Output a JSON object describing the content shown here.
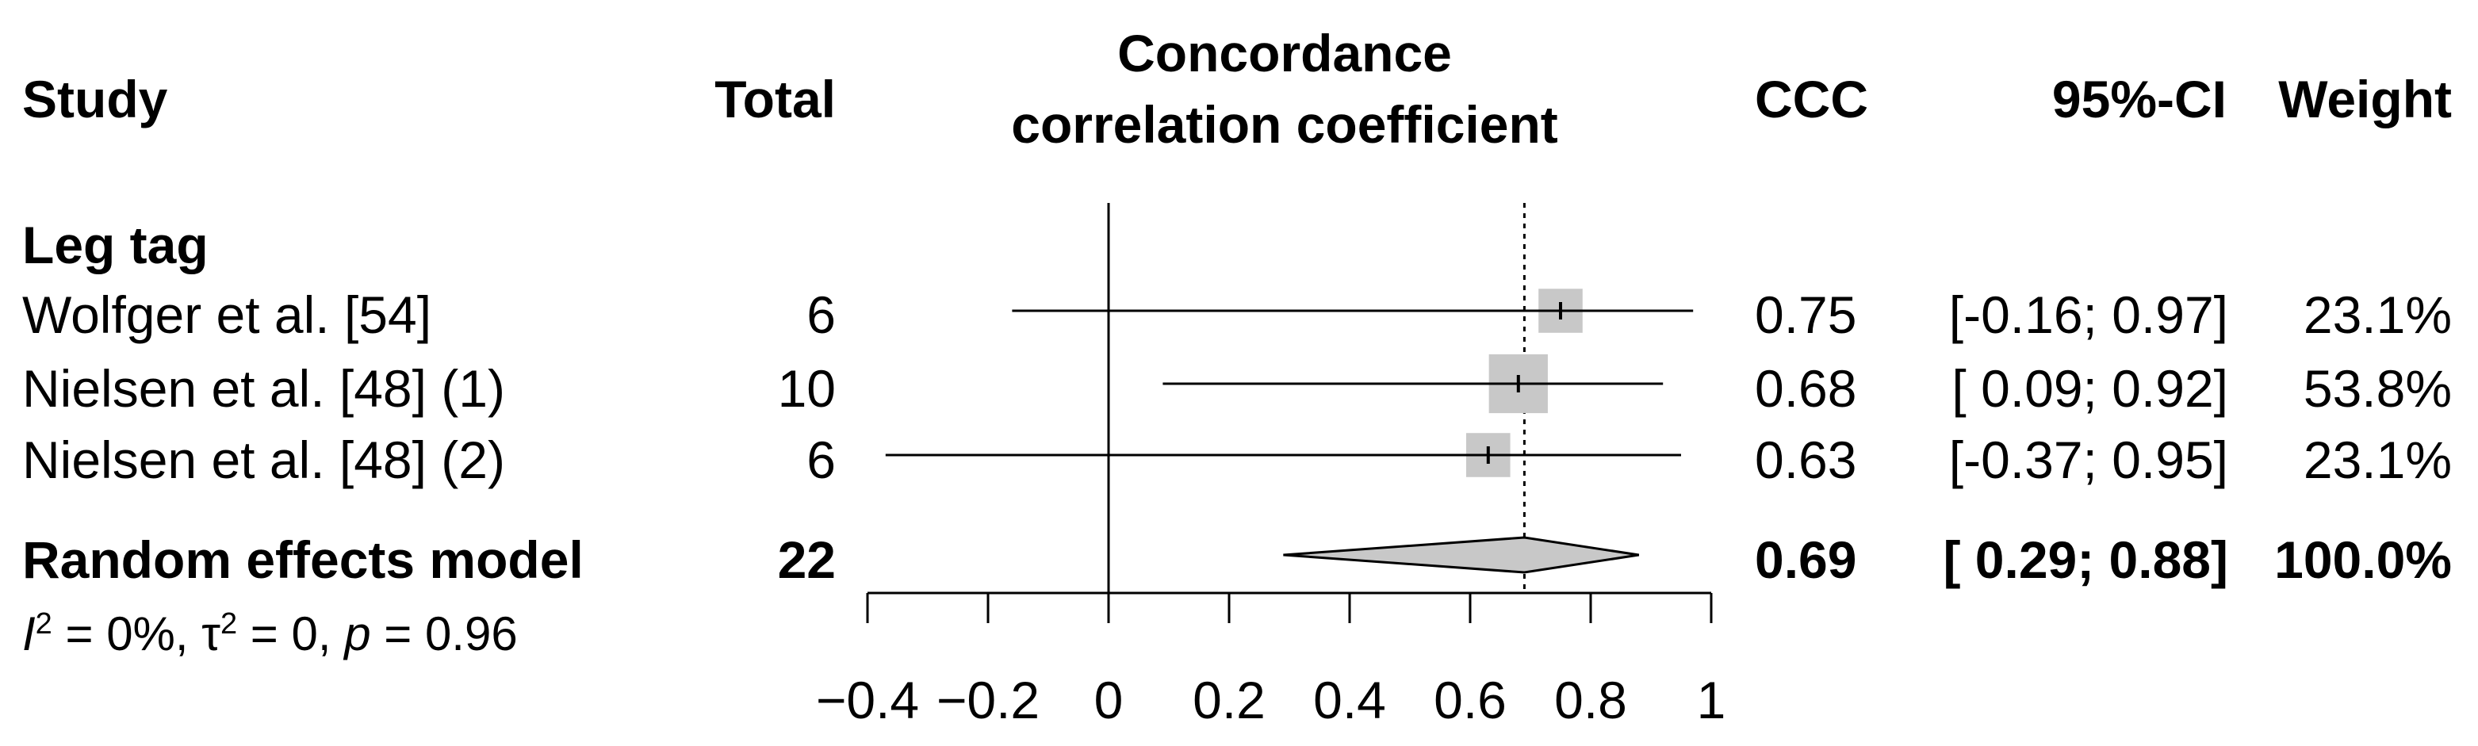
{
  "headers": {
    "study": "Study",
    "total": "Total",
    "plot_title_line1": "Concordance",
    "plot_title_line2": "correlation coefficient",
    "ccc": "CCC",
    "ci": "95%-CI",
    "weight": "Weight"
  },
  "subgroup": "Leg tag",
  "studies": [
    {
      "name": "Wolfger et al. [54]",
      "total": "6",
      "ccc": "0.75",
      "ci": "[-0.16; 0.97]",
      "weight": "23.1%"
    },
    {
      "name": "Nielsen et al. [48] (1)",
      "total": "10",
      "ccc": "0.68",
      "ci": "[ 0.09; 0.92]",
      "weight": "53.8%"
    },
    {
      "name": "Nielsen et al. [48] (2)",
      "total": "6",
      "ccc": "0.63",
      "ci": "[-0.37; 0.95]",
      "weight": "23.1%"
    }
  ],
  "pooled": {
    "name": "Random effects model",
    "total": "22",
    "ccc": "0.69",
    "ci": "[ 0.29; 0.88]",
    "weight": "100.0%"
  },
  "heterogeneity": {
    "i_label": "I",
    "i_sup": "2",
    "i_value": " = 0%, ",
    "tau_label": "τ",
    "tau_sup": "2",
    "tau_value": " = 0, ",
    "p_label": "p",
    "p_value": " = 0.96"
  },
  "chart_data": {
    "type": "forest",
    "title": "Concordance correlation coefficient",
    "xlim": [
      -0.4,
      1
    ],
    "ticks": [
      -0.4,
      -0.2,
      0,
      0.2,
      0.4,
      0.6,
      0.8,
      1
    ],
    "tick_labels": [
      "−0.4",
      "−0.2",
      "0",
      "0.2",
      "0.4",
      "0.6",
      "0.8",
      "1"
    ],
    "null_line": 0,
    "pooled_line": 0.69,
    "studies": [
      {
        "name": "Wolfger et al. [54]",
        "estimate": 0.75,
        "lower": -0.16,
        "upper": 0.97,
        "weight": 23.1
      },
      {
        "name": "Nielsen et al. [48] (1)",
        "estimate": 0.68,
        "lower": 0.09,
        "upper": 0.92,
        "weight": 53.8
      },
      {
        "name": "Nielsen et al. [48] (2)",
        "estimate": 0.63,
        "lower": -0.37,
        "upper": 0.95,
        "weight": 23.1
      }
    ],
    "pooled": {
      "estimate": 0.69,
      "lower": 0.29,
      "upper": 0.88
    },
    "colors": {
      "square": "#c8c8c8",
      "diamond": "#c8c8c8",
      "line": "#000000"
    }
  }
}
